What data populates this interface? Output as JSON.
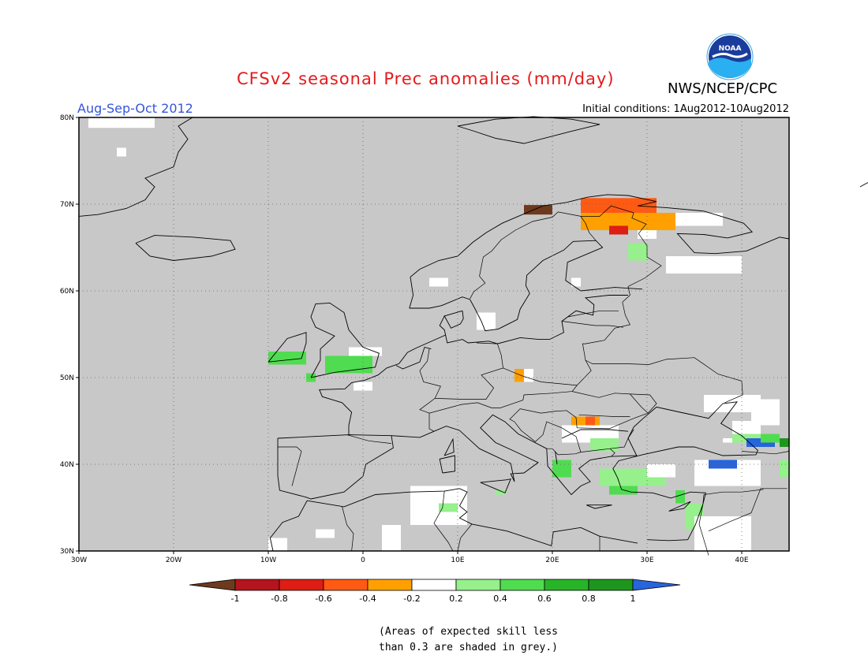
{
  "header": {
    "title": "CFSv2 seasonal Prec anomalies (mm/day)",
    "org": "NWS/NCEP/CPC",
    "season": "Aug-Sep-Oct 2012",
    "initial_conditions": "Initial conditions: 1Aug2012-10Aug2012",
    "logo_text": "NOAA"
  },
  "map": {
    "lon_range": [
      -30,
      45
    ],
    "lat_range": [
      30,
      80
    ],
    "background_color": "#c8c8c8",
    "lon_ticks": [
      "30W",
      "20W",
      "10W",
      "0",
      "10E",
      "20E",
      "30E",
      "40E"
    ],
    "lat_ticks": [
      "30N",
      "40N",
      "50N",
      "60N",
      "70N",
      "80N"
    ],
    "grid": "dotted",
    "anomaly_regions": [
      {
        "lon": [
          -29,
          -22
        ],
        "lat": [
          78.8,
          80
        ],
        "value": 0.0
      },
      {
        "lon": [
          -26,
          -25
        ],
        "lat": [
          75.5,
          76.5
        ],
        "value": 0.0
      },
      {
        "lon": [
          17,
          20
        ],
        "lat": [
          68.8,
          69.9
        ],
        "value": -1.0
      },
      {
        "lon": [
          23,
          31
        ],
        "lat": [
          68.5,
          70.7
        ],
        "value": -0.5
      },
      {
        "lon": [
          23,
          33
        ],
        "lat": [
          67,
          69
        ],
        "value": -0.3
      },
      {
        "lon": [
          26,
          28
        ],
        "lat": [
          66.5,
          67.5
        ],
        "value": -0.6
      },
      {
        "lon": [
          33,
          38
        ],
        "lat": [
          67.5,
          69
        ],
        "value": 0.0
      },
      {
        "lon": [
          29,
          31
        ],
        "lat": [
          66,
          67
        ],
        "value": 0.0
      },
      {
        "lon": [
          28,
          30
        ],
        "lat": [
          63.5,
          65.5
        ],
        "value": 0.3
      },
      {
        "lon": [
          32,
          40
        ],
        "lat": [
          62,
          64
        ],
        "value": 0.0
      },
      {
        "lon": [
          7,
          9
        ],
        "lat": [
          60.5,
          61.5
        ],
        "value": 0.0
      },
      {
        "lon": [
          22,
          23
        ],
        "lat": [
          60.5,
          61.5
        ],
        "value": 0.0
      },
      {
        "lon": [
          12,
          14
        ],
        "lat": [
          55.5,
          57.5
        ],
        "value": 0.0
      },
      {
        "lon": [
          -10,
          -6
        ],
        "lat": [
          51.5,
          53
        ],
        "value": 0.4
      },
      {
        "lon": [
          -4,
          1
        ],
        "lat": [
          50.5,
          52.5
        ],
        "value": 0.4
      },
      {
        "lon": [
          -1.5,
          2
        ],
        "lat": [
          52.5,
          53.5
        ],
        "value": 0.0
      },
      {
        "lon": [
          -6,
          -5
        ],
        "lat": [
          49.5,
          50.5
        ],
        "value": 0.5
      },
      {
        "lon": [
          -1,
          1
        ],
        "lat": [
          48.5,
          49.5
        ],
        "value": 0.0
      },
      {
        "lon": [
          16,
          17
        ],
        "lat": [
          49.5,
          51
        ],
        "value": -0.3
      },
      {
        "lon": [
          17,
          18
        ],
        "lat": [
          49.5,
          51
        ],
        "value": 0.0
      },
      {
        "lon": [
          22,
          25
        ],
        "lat": [
          44.5,
          45.5
        ],
        "value": -0.3
      },
      {
        "lon": [
          23.5,
          24.5
        ],
        "lat": [
          44.5,
          45.5
        ],
        "value": -0.5
      },
      {
        "lon": [
          21,
          27
        ],
        "lat": [
          42.5,
          44.5
        ],
        "value": 0.0
      },
      {
        "lon": [
          24,
          27
        ],
        "lat": [
          41.5,
          43
        ],
        "value": 0.3
      },
      {
        "lon": [
          20,
          22
        ],
        "lat": [
          38.5,
          40.5
        ],
        "value": 0.4
      },
      {
        "lon": [
          25,
          32
        ],
        "lat": [
          37.5,
          39.5
        ],
        "value": 0.3
      },
      {
        "lon": [
          30,
          33
        ],
        "lat": [
          38.5,
          40
        ],
        "value": 0.0
      },
      {
        "lon": [
          26,
          29
        ],
        "lat": [
          36.5,
          37.5
        ],
        "value": 0.5
      },
      {
        "lon": [
          33,
          34
        ],
        "lat": [
          35.5,
          37
        ],
        "value": 0.5
      },
      {
        "lon": [
          34,
          36
        ],
        "lat": [
          32.5,
          35.5
        ],
        "value": 0.3
      },
      {
        "lon": [
          35,
          42
        ],
        "lat": [
          37.5,
          40.5
        ],
        "value": 0.0
      },
      {
        "lon": [
          36.5,
          39.5
        ],
        "lat": [
          39.5,
          40.5
        ],
        "value": 1.0
      },
      {
        "lon": [
          38,
          40
        ],
        "lat": [
          42.5,
          43
        ],
        "value": 0.0
      },
      {
        "lon": [
          39,
          42
        ],
        "lat": [
          43.5,
          45
        ],
        "value": 0.0
      },
      {
        "lon": [
          36,
          42
        ],
        "lat": [
          46,
          48
        ],
        "value": 0.0
      },
      {
        "lon": [
          41,
          44
        ],
        "lat": [
          44.5,
          47.5
        ],
        "value": 0.0
      },
      {
        "lon": [
          39,
          42
        ],
        "lat": [
          42.5,
          43.5
        ],
        "value": 0.3
      },
      {
        "lon": [
          40.5,
          43.5
        ],
        "lat": [
          42,
          43
        ],
        "value": 1.0
      },
      {
        "lon": [
          42,
          44
        ],
        "lat": [
          42.5,
          43.5
        ],
        "value": 0.5
      },
      {
        "lon": [
          44,
          45
        ],
        "lat": [
          42,
          43
        ],
        "value": 0.8
      },
      {
        "lon": [
          44,
          45
        ],
        "lat": [
          38.5,
          40.5
        ],
        "value": 0.3
      },
      {
        "lon": [
          35,
          41
        ],
        "lat": [
          30,
          34
        ],
        "value": 0.0
      },
      {
        "lon": [
          5,
          11
        ],
        "lat": [
          33,
          37.5
        ],
        "value": 0.0
      },
      {
        "lon": [
          8,
          10
        ],
        "lat": [
          34.5,
          35.5
        ],
        "value": 0.3
      },
      {
        "lon": [
          2,
          4
        ],
        "lat": [
          30,
          33
        ],
        "value": 0.0
      },
      {
        "lon": [
          -5,
          -3
        ],
        "lat": [
          31.5,
          32.5
        ],
        "value": 0.0
      },
      {
        "lon": [
          -10,
          -8
        ],
        "lat": [
          30,
          31.5
        ],
        "value": 0.0
      },
      {
        "lon": [
          14,
          15
        ],
        "lat": [
          36.5,
          37
        ],
        "value": 0.3
      }
    ]
  },
  "colorbar": {
    "tick_labels": [
      "-1",
      "-0.8",
      "-0.6",
      "-0.4",
      "-0.2",
      "0.2",
      "0.4",
      "0.6",
      "0.8",
      "1"
    ],
    "colors": [
      "#6e3a1e",
      "#b4141e",
      "#dc1e14",
      "#ff5a14",
      "#ffa000",
      "#ffffff",
      "#96f08c",
      "#50dc50",
      "#28b428",
      "#1e961e",
      "#2864dc"
    ]
  },
  "footnote": {
    "line1": "(Areas of expected skill less",
    "line2": "than 0.3 are shaded in grey.)"
  }
}
